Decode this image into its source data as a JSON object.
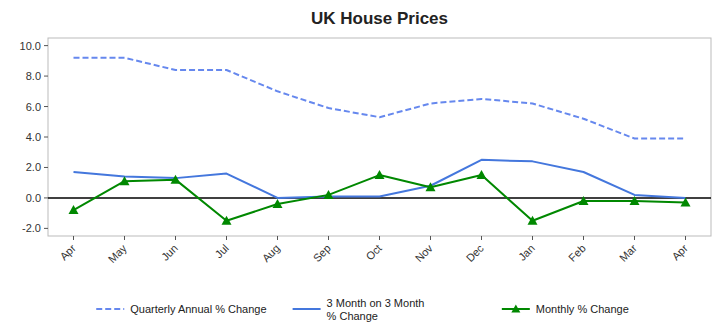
{
  "chart_data": {
    "type": "line",
    "title": "UK House Prices",
    "categories": [
      "Apr",
      "May",
      "Jun",
      "Jul",
      "Aug",
      "Sep",
      "Oct",
      "Nov",
      "Dec",
      "Jan",
      "Feb",
      "Mar",
      "Apr"
    ],
    "series": [
      {
        "name": "Quarterly Annual % Change",
        "color": "#6688ee",
        "line_style": "dashed",
        "values": [
          9.2,
          9.2,
          8.4,
          8.4,
          7.0,
          5.9,
          5.3,
          6.2,
          6.5,
          6.2,
          5.2,
          3.9,
          3.9
        ]
      },
      {
        "name": "3 Month on 3 Month\n% Change",
        "color": "#4477dd",
        "line_style": "solid",
        "values": [
          1.7,
          1.4,
          1.3,
          1.6,
          0.0,
          0.1,
          0.1,
          0.8,
          2.5,
          2.4,
          1.7,
          0.2,
          0.0
        ]
      },
      {
        "name": "Monthly % Change",
        "color": "#008800",
        "line_style": "solid",
        "marker": "triangle",
        "values": [
          -0.8,
          1.1,
          1.2,
          -1.5,
          -0.4,
          0.2,
          1.5,
          0.7,
          1.5,
          -1.5,
          -0.2,
          -0.2,
          -0.3
        ]
      }
    ],
    "ylim": [
      -2.5,
      10.5
    ],
    "yticks": [
      {
        "value": -2.0,
        "label": "-2.0"
      },
      {
        "value": 0.0,
        "label": "0.0"
      },
      {
        "value": 2.0,
        "label": "2.0"
      },
      {
        "value": 4.0,
        "label": "4.0"
      },
      {
        "value": 6.0,
        "label": "6.0"
      },
      {
        "value": 8.0,
        "label": "8.0"
      },
      {
        "value": 10.0,
        "label": "10.0"
      }
    ],
    "grid": false,
    "legend": "bottom"
  }
}
